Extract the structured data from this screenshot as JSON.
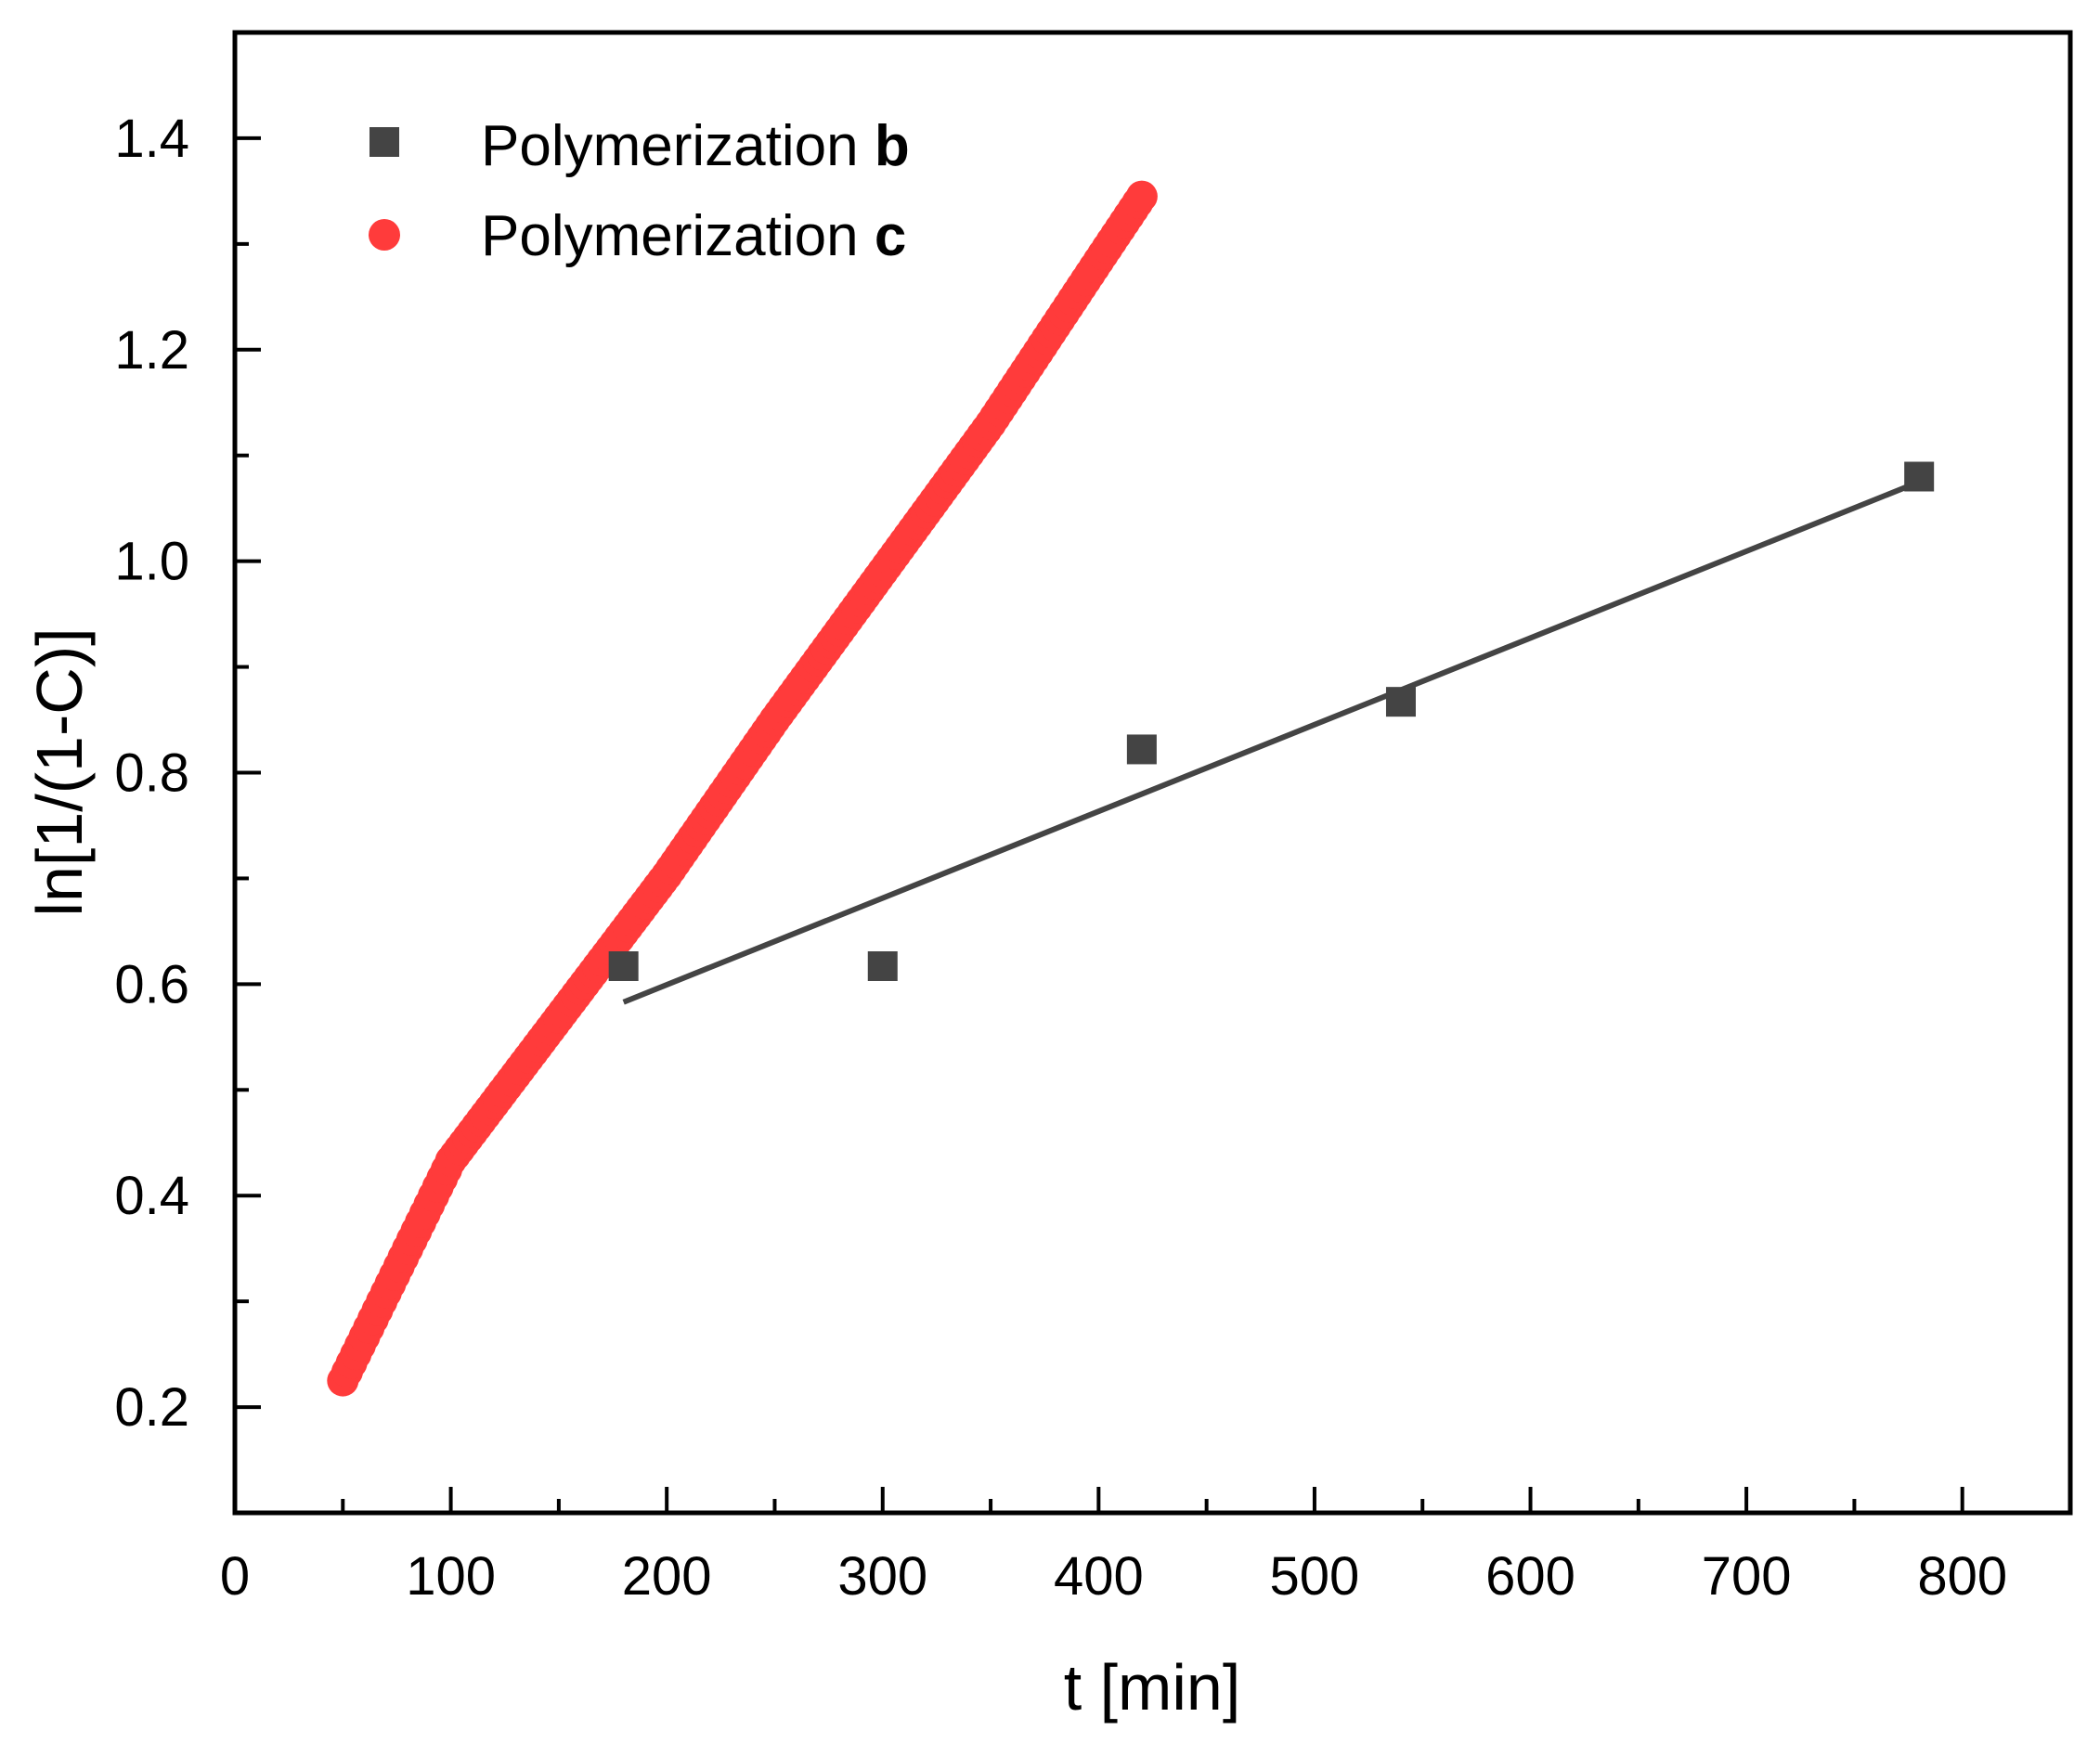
{
  "chart_data": {
    "type": "scatter",
    "title": "",
    "xlabel": "t [min]",
    "ylabel": "ln[1/(1-C)]",
    "xlim": [
      0,
      850
    ],
    "ylim": [
      0.1,
      1.5
    ],
    "xticks": [
      0,
      100,
      200,
      300,
      400,
      500,
      600,
      700,
      800
    ],
    "xtick_labels": [
      "0",
      "100",
      "200",
      "300",
      "400",
      "500",
      "600",
      "700",
      "800"
    ],
    "yticks": [
      0.2,
      0.4,
      0.6,
      0.8,
      1.0,
      1.2,
      1.4
    ],
    "ytick_labels": [
      "0.2",
      "0.4",
      "0.6",
      "0.8",
      "1.0",
      "1.2",
      "1.4"
    ],
    "grid": false,
    "legend_position": "top-left",
    "series": [
      {
        "name": "Polymerization b",
        "legend_prefix": "Polymerization ",
        "legend_bold": "b",
        "marker": "square",
        "color": "#444444",
        "x": [
          180,
          300,
          420,
          540,
          780
        ],
        "y": [
          0.617,
          0.617,
          0.822,
          0.867,
          1.08
        ]
      },
      {
        "name": "Polymerization c",
        "legend_prefix": "Polymerization ",
        "legend_bold": "c",
        "marker": "circle",
        "color": "#ff3b3b",
        "x_start": 50,
        "x_end": 420,
        "x_step": 2,
        "curve_anchors": [
          [
            50,
            0.225
          ],
          [
            100,
            0.433
          ],
          [
            150,
            0.568
          ],
          [
            200,
            0.703
          ],
          [
            250,
            0.85
          ],
          [
            300,
            0.99
          ],
          [
            350,
            1.13
          ],
          [
            400,
            1.284
          ],
          [
            420,
            1.345
          ]
        ]
      }
    ],
    "fit_line": {
      "series": "Polymerization b",
      "color": "#444444",
      "x": [
        180,
        780
      ],
      "y": [
        0.583,
        1.075
      ]
    }
  }
}
